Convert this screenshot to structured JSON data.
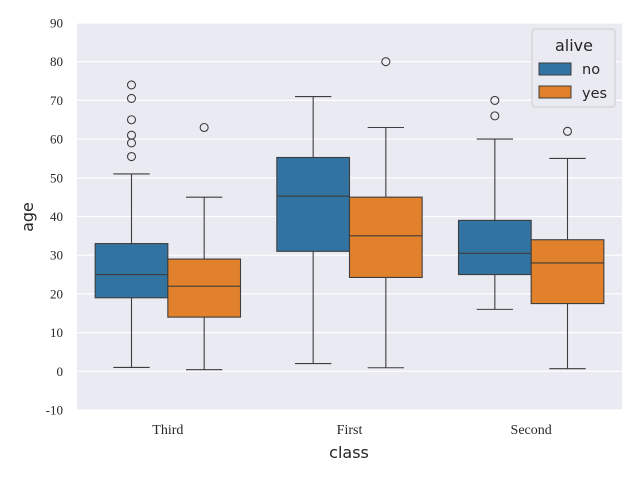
{
  "chart_data": {
    "type": "box",
    "title": "",
    "xlabel": "class",
    "ylabel": "age",
    "ylim": [
      -10,
      90
    ],
    "yticks": [
      "-10",
      "0",
      "10",
      "20",
      "30",
      "40",
      "50",
      "60",
      "70",
      "80",
      "90"
    ],
    "grid": true,
    "background": "#eaeaf2",
    "categories": [
      "Third",
      "First",
      "Second"
    ],
    "legend": {
      "title": "alive",
      "placement": "top-right"
    },
    "series": [
      {
        "name": "no",
        "color": "#3274a1",
        "boxes": [
          {
            "category": "Third",
            "whislo": 1,
            "q1": 19,
            "med": 25,
            "q3": 33,
            "whishi": 51,
            "fliers": [
              55.5,
              59,
              61,
              65,
              70.5,
              74
            ]
          },
          {
            "category": "First",
            "whislo": 2,
            "q1": 31,
            "med": 45.25,
            "q3": 55.25,
            "whishi": 71,
            "fliers": []
          },
          {
            "category": "Second",
            "whislo": 16,
            "q1": 25,
            "med": 30.5,
            "q3": 39,
            "whishi": 60,
            "fliers": [
              66,
              70
            ]
          }
        ]
      },
      {
        "name": "yes",
        "color": "#e1812c",
        "boxes": [
          {
            "category": "Third",
            "whislo": 0.42,
            "q1": 14,
            "med": 22,
            "q3": 29,
            "whishi": 45,
            "fliers": [
              63
            ]
          },
          {
            "category": "First",
            "whislo": 0.92,
            "q1": 24.25,
            "med": 35,
            "q3": 45,
            "whishi": 63,
            "fliers": [
              80
            ]
          },
          {
            "category": "Second",
            "whislo": 0.67,
            "q1": 17.5,
            "med": 28,
            "q3": 34,
            "whishi": 55,
            "fliers": [
              62
            ]
          }
        ]
      }
    ]
  }
}
